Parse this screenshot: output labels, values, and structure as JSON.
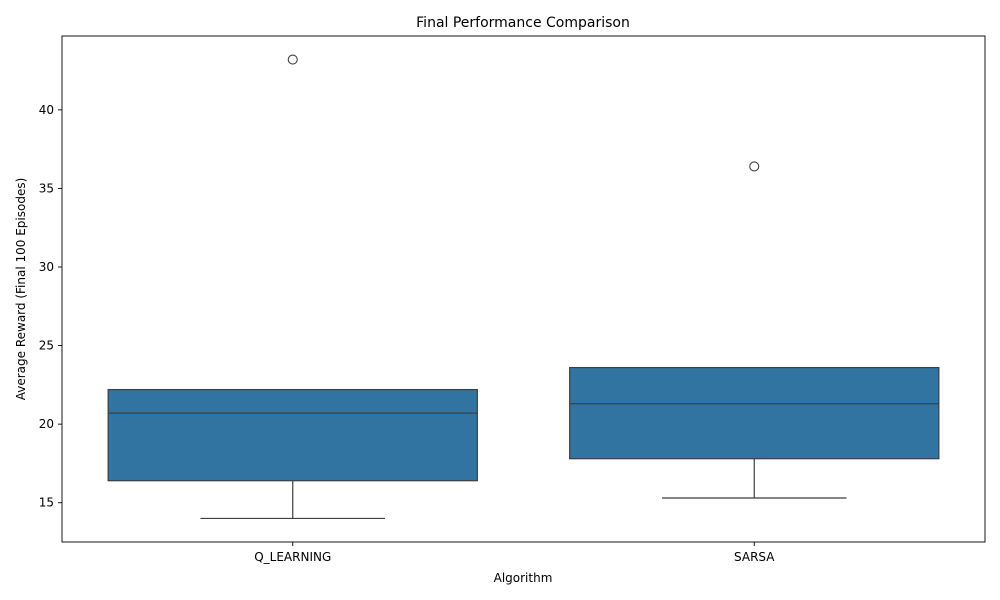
{
  "chart_data": {
    "type": "box",
    "title": "Final Performance Comparison",
    "xlabel": "Algorithm",
    "ylabel": "Average Reward (Final 100 Episodes)",
    "categories": [
      "Q_LEARNING",
      "SARSA"
    ],
    "boxes": [
      {
        "category": "Q_LEARNING",
        "whisker_low": 14.0,
        "q1": 16.4,
        "median": 20.7,
        "q3": 22.2,
        "whisker_high": 22.2,
        "outliers": [
          43.2
        ]
      },
      {
        "category": "SARSA",
        "whisker_low": 15.3,
        "q1": 17.8,
        "median": 21.3,
        "q3": 23.6,
        "whisker_high": 23.6,
        "outliers": [
          36.4
        ]
      }
    ],
    "yticks": [
      15,
      20,
      25,
      30,
      35,
      40
    ],
    "ylim": [
      12.5,
      44.7
    ],
    "grid": false,
    "legend": "none",
    "colors": {
      "box_fill": "#3274a1",
      "line": "#3f3f3f",
      "axis": "#000000"
    }
  }
}
